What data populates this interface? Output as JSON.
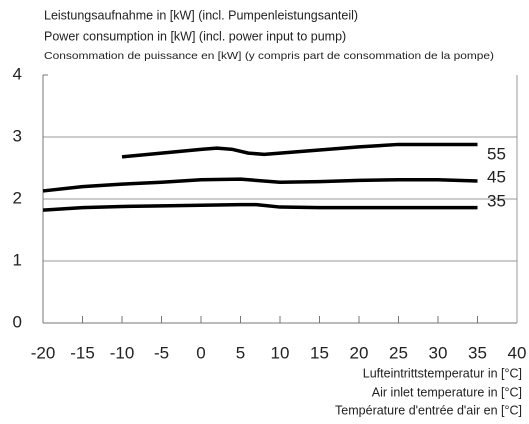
{
  "chart_data": {
    "type": "line",
    "title": [
      "Leistungsaufnahme in [kW] (incl. Pumpenleistungsanteil)",
      "Power consumption in [kW] (incl. power input to pump)",
      "Consommation de puissance en [kW] (y compris part de consommation de la pompe)"
    ],
    "xlabel": [
      "Lufteintrittstemperatur in [°C]",
      "Air inlet temperature in [°C]",
      "Température d'entrée d'air en [°C]"
    ],
    "xlim": [
      -20,
      40
    ],
    "xticks": [
      -20,
      -15,
      -10,
      -5,
      0,
      5,
      10,
      15,
      20,
      25,
      30,
      35,
      40
    ],
    "ylim": [
      0,
      4
    ],
    "yticks": [
      0,
      1,
      2,
      3,
      4
    ],
    "grid": true,
    "series": [
      {
        "name": "55",
        "color": "#000000",
        "x": [
          -10,
          -5,
          0,
          2,
          4,
          6,
          8,
          10,
          15,
          20,
          25,
          30,
          35
        ],
        "values": [
          2.68,
          2.74,
          2.8,
          2.82,
          2.8,
          2.74,
          2.72,
          2.74,
          2.79,
          2.84,
          2.88,
          2.88,
          2.88
        ]
      },
      {
        "name": "45",
        "color": "#000000",
        "x": [
          -20,
          -15,
          -10,
          -5,
          0,
          5,
          10,
          15,
          20,
          25,
          30,
          35
        ],
        "values": [
          2.13,
          2.2,
          2.24,
          2.27,
          2.31,
          2.32,
          2.27,
          2.28,
          2.3,
          2.31,
          2.31,
          2.29
        ]
      },
      {
        "name": "35",
        "color": "#000000",
        "x": [
          -20,
          -15,
          -10,
          -5,
          0,
          5,
          7,
          10,
          15,
          20,
          25,
          30,
          35
        ],
        "values": [
          1.82,
          1.86,
          1.88,
          1.89,
          1.9,
          1.91,
          1.91,
          1.87,
          1.86,
          1.86,
          1.86,
          1.86,
          1.86
        ]
      }
    ]
  }
}
